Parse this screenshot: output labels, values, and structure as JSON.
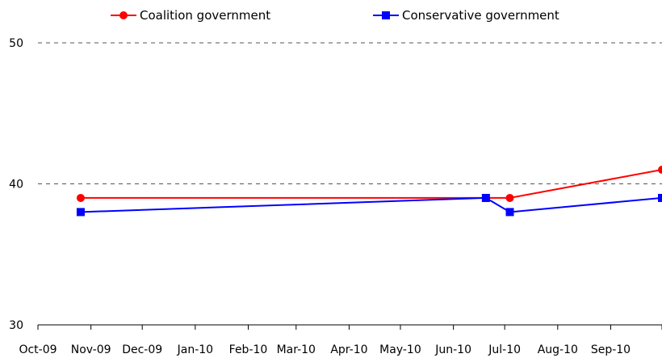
{
  "chart_data": {
    "type": "line",
    "title": "",
    "xlabel": "",
    "ylabel": "",
    "ylim": [
      30,
      50
    ],
    "yticks": [
      30,
      40,
      50
    ],
    "gridlines_dashed_at": [
      40,
      50
    ],
    "legend_position": "top",
    "x_tick_labels": [
      "Oct-09",
      "Nov-09",
      "Dec-09",
      "Jan-10",
      "Feb-10",
      "Mar-10",
      "Apr-10",
      "May-10",
      "Jun-10",
      "Jul-10",
      "Aug-10",
      "Sep-10"
    ],
    "xlim": [
      "2009-10-01",
      "2010-10-01"
    ],
    "series": [
      {
        "name": "Coalition government",
        "color": "#ff0000",
        "marker": "circle",
        "points": [
          {
            "date": "2009-10-26",
            "value": 39
          },
          {
            "date": "2010-06-20",
            "value": 39
          },
          {
            "date": "2010-07-04",
            "value": 39
          },
          {
            "date": "2010-10-01",
            "value": 41
          }
        ]
      },
      {
        "name": "Conservative government",
        "color": "#0000ff",
        "marker": "square",
        "points": [
          {
            "date": "2009-10-26",
            "value": 38
          },
          {
            "date": "2010-06-20",
            "value": 39
          },
          {
            "date": "2010-07-04",
            "value": 38
          },
          {
            "date": "2010-10-01",
            "value": 39
          }
        ]
      }
    ]
  }
}
